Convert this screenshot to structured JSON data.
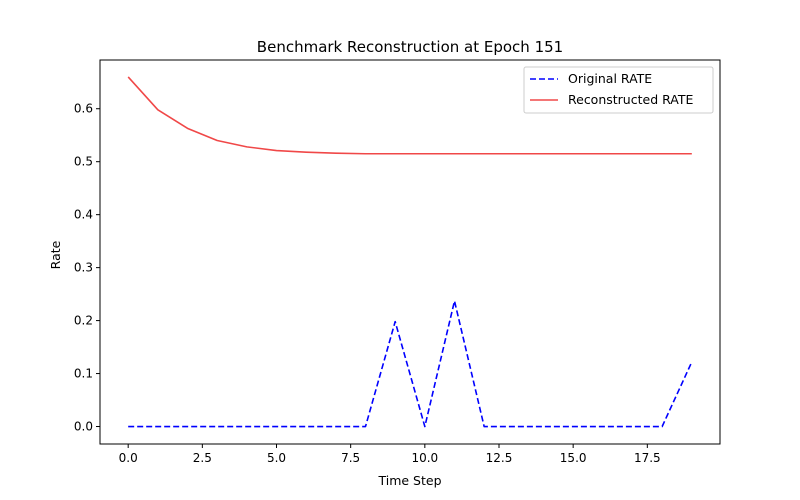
{
  "chart_data": {
    "type": "line",
    "title": "Benchmark Reconstruction at Epoch 151",
    "xlabel": "Time Step",
    "ylabel": "Rate",
    "xlim": [
      -0.95,
      19.95
    ],
    "ylim": [
      -0.033,
      0.692
    ],
    "xticks": [
      0.0,
      2.5,
      5.0,
      7.5,
      10.0,
      12.5,
      15.0,
      17.5
    ],
    "xtick_labels": [
      "0.0",
      "2.5",
      "5.0",
      "7.5",
      "10.0",
      "12.5",
      "15.0",
      "17.5"
    ],
    "yticks": [
      0.0,
      0.1,
      0.2,
      0.3,
      0.4,
      0.5,
      0.6
    ],
    "ytick_labels": [
      "0.0",
      "0.1",
      "0.2",
      "0.3",
      "0.4",
      "0.5",
      "0.6"
    ],
    "grid": false,
    "legend_position": "top-right",
    "x": [
      0,
      1,
      2,
      3,
      4,
      5,
      6,
      7,
      8,
      9,
      10,
      11,
      12,
      13,
      14,
      15,
      16,
      17,
      18,
      19
    ],
    "series": [
      {
        "name": "Original RATE",
        "color": "#0000ff",
        "style": "dashed",
        "values": [
          0,
          0,
          0,
          0,
          0,
          0,
          0,
          0,
          0,
          0.198,
          0,
          0.237,
          0,
          0,
          0,
          0,
          0,
          0,
          0,
          0.122
        ]
      },
      {
        "name": "Reconstructed RATE",
        "color": "#f04848",
        "style": "solid",
        "values": [
          0.66,
          0.598,
          0.563,
          0.54,
          0.528,
          0.521,
          0.518,
          0.516,
          0.515,
          0.515,
          0.515,
          0.515,
          0.515,
          0.515,
          0.515,
          0.515,
          0.515,
          0.515,
          0.515,
          0.515
        ]
      }
    ]
  }
}
